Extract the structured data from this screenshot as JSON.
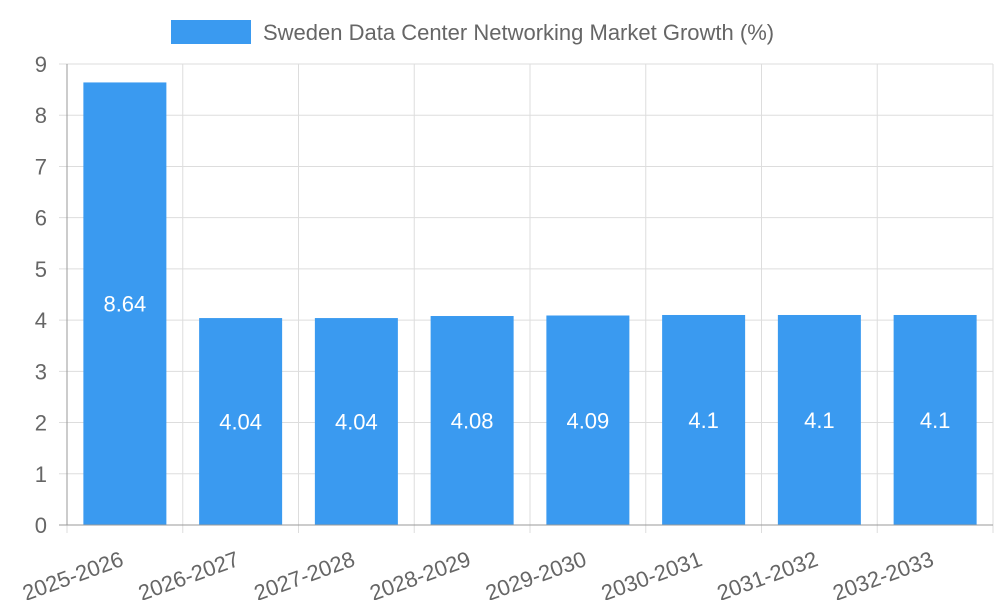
{
  "chart_data": {
    "type": "bar",
    "title": "",
    "categories": [
      "2025-2026",
      "2026-2027",
      "2027-2028",
      "2028-2029",
      "2029-2030",
      "2030-2031",
      "2031-2032",
      "2032-2033"
    ],
    "series": [
      {
        "name": "Sweden Data Center Networking Market Growth (%)",
        "values": [
          8.64,
          4.04,
          4.04,
          4.08,
          4.09,
          4.1,
          4.1,
          4.1
        ],
        "labels": [
          "8.64",
          "4.04",
          "4.04",
          "4.08",
          "4.09",
          "4.1",
          "4.1",
          "4.1"
        ],
        "color": "#3a9af0"
      }
    ],
    "ylim": [
      0,
      9
    ],
    "yticks": [
      0,
      1,
      2,
      3,
      4,
      5,
      6,
      7,
      8,
      9
    ],
    "grid": true,
    "legend_position": "top",
    "xlabel": "",
    "ylabel": ""
  },
  "colors": {
    "bar": "#3a9af0",
    "grid": "#dddddd",
    "axis": "#999999",
    "text": "#666666"
  }
}
